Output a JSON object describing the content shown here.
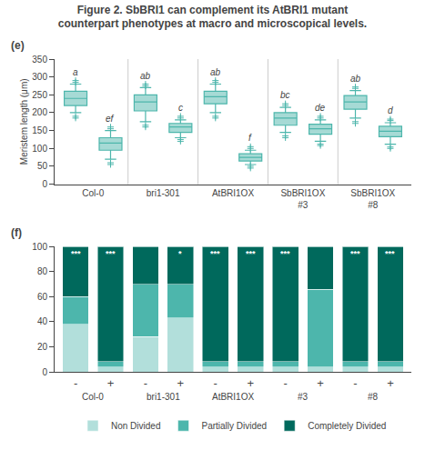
{
  "title": "Figure 2. SbBRI1 can complement its AtBRI1 mutant",
  "subtitle": "counterpart phenotypes at macro and microscopical levels.",
  "chart_data": [
    {
      "type": "box",
      "ylabel": "Meristem length (μm)",
      "categories": [
        "Col-0",
        "bri1-301",
        "AtBRI1OX",
        "SbBRI1OX\n#3",
        "SbBRI1OX\n#8"
      ],
      "boxes": [
        [
          {
            "med": 240,
            "q1": 220,
            "q3": 260,
            "whislo": 200,
            "whishi": 280,
            "fliers": [
              185,
              190,
              285,
              290
            ],
            "label": "a"
          },
          {
            "med": 115,
            "q1": 95,
            "q3": 130,
            "whislo": 70,
            "whishi": 150,
            "fliers": [
              55,
              60,
              155,
              160
            ],
            "label": "ef"
          }
        ],
        [
          {
            "med": 230,
            "q1": 205,
            "q3": 250,
            "whislo": 175,
            "whishi": 270,
            "fliers": [
              160,
              165,
              275,
              280
            ],
            "label": "ab"
          },
          {
            "med": 160,
            "q1": 145,
            "q3": 170,
            "whislo": 130,
            "whishi": 180,
            "fliers": [
              120,
              125,
              185,
              190
            ],
            "label": "c"
          }
        ],
        [
          {
            "med": 245,
            "q1": 225,
            "q3": 260,
            "whislo": 200,
            "whishi": 280,
            "fliers": [
              185,
              190,
              285,
              290
            ],
            "label": "ab"
          },
          {
            "med": 75,
            "q1": 65,
            "q3": 85,
            "whislo": 55,
            "whishi": 95,
            "fliers": [
              45,
              50,
              100,
              105
            ],
            "label": "f"
          }
        ],
        [
          {
            "med": 185,
            "q1": 165,
            "q3": 200,
            "whislo": 145,
            "whishi": 215,
            "fliers": [
              130,
              135,
              220,
              225
            ],
            "label": "bc"
          },
          {
            "med": 155,
            "q1": 140,
            "q3": 168,
            "whislo": 120,
            "whishi": 180,
            "fliers": [
              108,
              112,
              185,
              190
            ],
            "label": "de"
          }
        ],
        [
          {
            "med": 230,
            "q1": 210,
            "q3": 248,
            "whislo": 185,
            "whishi": 262,
            "fliers": [
              170,
              175,
              268,
              272
            ],
            "label": "ab"
          },
          {
            "med": 148,
            "q1": 133,
            "q3": 162,
            "whislo": 112,
            "whishi": 172,
            "fliers": [
              100,
              104,
              178,
              182
            ],
            "label": "d"
          }
        ]
      ],
      "color": "#4db6ac",
      "ylim": [
        0,
        350
      ],
      "yticks": [
        0,
        50,
        100,
        150,
        200,
        250,
        300,
        350
      ],
      "grid": false,
      "annotations": [
        "(e)"
      ]
    },
    {
      "type": "bar",
      "stacked": true,
      "categories": [
        "-",
        "+",
        "-",
        "+",
        "-",
        "+",
        "-",
        "+",
        "-",
        "+"
      ],
      "groups": [
        "Col-0",
        "bri1-301",
        "AtBRI1OX",
        "#3",
        "#8"
      ],
      "series": [
        {
          "name": "Non Divided",
          "color": "#b2dfdb",
          "values": [
            38,
            4,
            28,
            43,
            4,
            4,
            4,
            4,
            4,
            4
          ]
        },
        {
          "name": "Partially Divided",
          "color": "#4db6ac",
          "values": [
            22,
            4,
            42,
            27,
            4,
            4,
            4,
            62,
            4,
            4
          ]
        },
        {
          "name": "Completely Divided",
          "color": "#00695c",
          "values": [
            40,
            92,
            30,
            30,
            92,
            92,
            92,
            34,
            92,
            92
          ]
        }
      ],
      "sig_labels": [
        "***",
        "***",
        null,
        "*",
        "***",
        "***",
        "***",
        null,
        "***",
        "***"
      ],
      "ylim": [
        0,
        100
      ],
      "yticks": [
        0,
        20,
        40,
        60,
        80,
        100
      ],
      "grid": false,
      "legend": "bottom",
      "annotations": [
        "(f)"
      ]
    }
  ]
}
